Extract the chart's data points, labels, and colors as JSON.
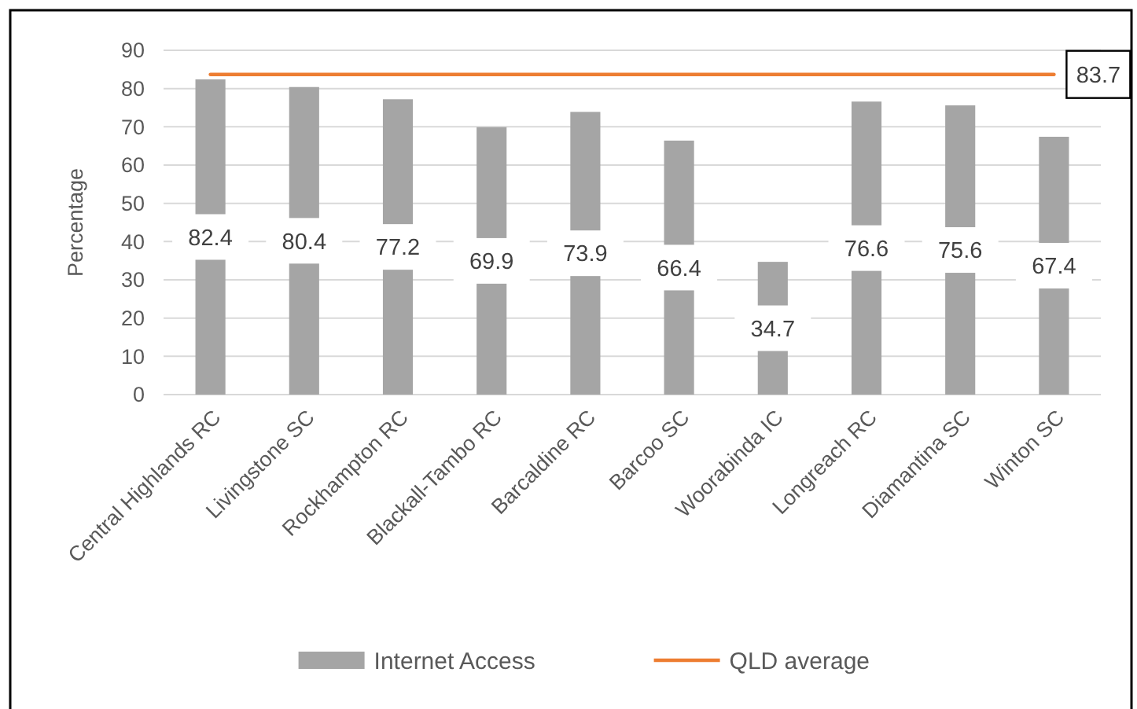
{
  "chart_data": {
    "type": "bar",
    "ylabel": "Percentage",
    "categories": [
      "Central Highlands RC",
      "Livingstone SC",
      "Rockhampton RC",
      "Blackall-Tambo RC",
      "Barcaldine RC",
      "Barcoo SC",
      "Woorabinda IC",
      "Longreach RC",
      "Diamantina SC",
      "Winton SC"
    ],
    "series": [
      {
        "name": "Internet Access",
        "color": "#a5a5a5",
        "values": [
          82.4,
          80.4,
          77.2,
          69.9,
          73.9,
          66.4,
          34.7,
          76.6,
          75.6,
          67.4
        ],
        "value_labels": [
          "82.4",
          "80.4",
          "77.2",
          "69.9",
          "73.9",
          "66.4",
          "34.7",
          "76.6",
          "75.6",
          "67.4"
        ]
      },
      {
        "name": "QLD average",
        "type": "line",
        "color": "#ed7d31",
        "values": [
          83.7,
          83.7,
          83.7,
          83.7,
          83.7,
          83.7,
          83.7,
          83.7,
          83.7,
          83.7
        ],
        "value_labels": [
          null,
          null,
          null,
          null,
          null,
          null,
          null,
          null,
          null,
          "83.7"
        ]
      }
    ],
    "ylim": [
      0,
      90
    ],
    "yticks": [
      0,
      10,
      20,
      30,
      40,
      50,
      60,
      70,
      80,
      90
    ],
    "grid": "y",
    "legend": "bottom"
  }
}
